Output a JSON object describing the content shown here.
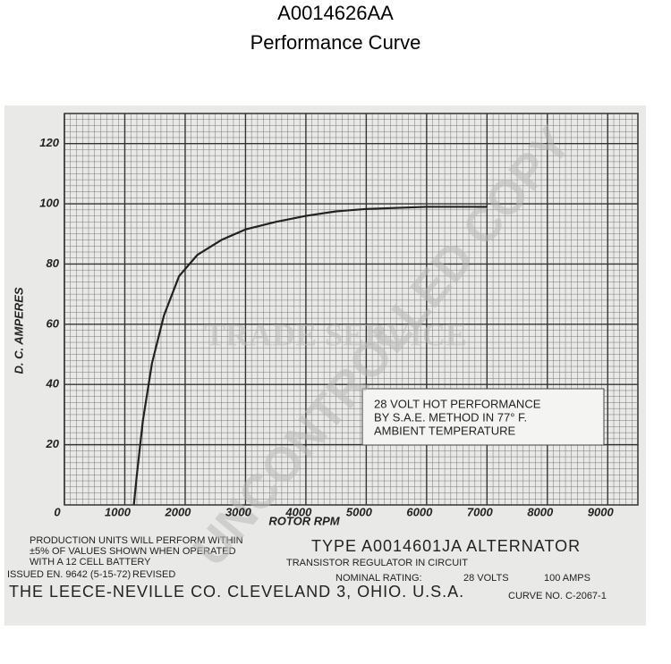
{
  "chart_data": {
    "type": "line",
    "title": "A0014626AA",
    "subtitle": "Performance Curve",
    "x_label": "ROTOR RPM",
    "y_label": "D. C. AMPERES",
    "x": [
      1150,
      1200,
      1300,
      1450,
      1650,
      1900,
      2200,
      2600,
      3000,
      3500,
      4000,
      4500,
      5000,
      6000,
      7000
    ],
    "values": [
      0,
      10,
      28,
      47,
      63,
      76,
      83,
      88,
      91.5,
      94,
      96,
      97.5,
      98.3,
      99,
      99
    ],
    "color": "#222222",
    "xlim": [
      0,
      9500
    ],
    "ylim": [
      0,
      130
    ],
    "xticks": [
      0,
      1000,
      2000,
      3000,
      4000,
      5000,
      6000,
      7000,
      8000,
      9000
    ],
    "yticks": [
      20,
      40,
      60,
      80,
      100,
      120
    ],
    "grid": true,
    "annotation": [
      "28 VOLT HOT PERFORMANCE",
      "BY S.A.E. METHOD IN 77° F.",
      "AMBIENT TEMPERATURE"
    ],
    "footer": [
      "PRODUCTION UNITS WILL PERFORM WITHIN",
      "±5% OF VALUES SHOWN WHEN OPERATED",
      "WITH A 12 CELL BATTERY",
      "TYPE A0014601JA ALTERNATOR",
      "TRANSISTOR REGULATOR IN CIRCUIT",
      "NOMINAL RATING:",
      "28 VOLTS",
      "100 AMPS",
      "ISSUED EN. 9642 (5-15-72)",
      "REVISED",
      "THE LEECE-NEVILLE CO. CLEVELAND 3, OHIO. U.S.A.",
      "CURVE NO. C-2067-1"
    ],
    "watermarks": [
      "TRADE SERVICE",
      "UNCONTROLLED COPY"
    ]
  }
}
